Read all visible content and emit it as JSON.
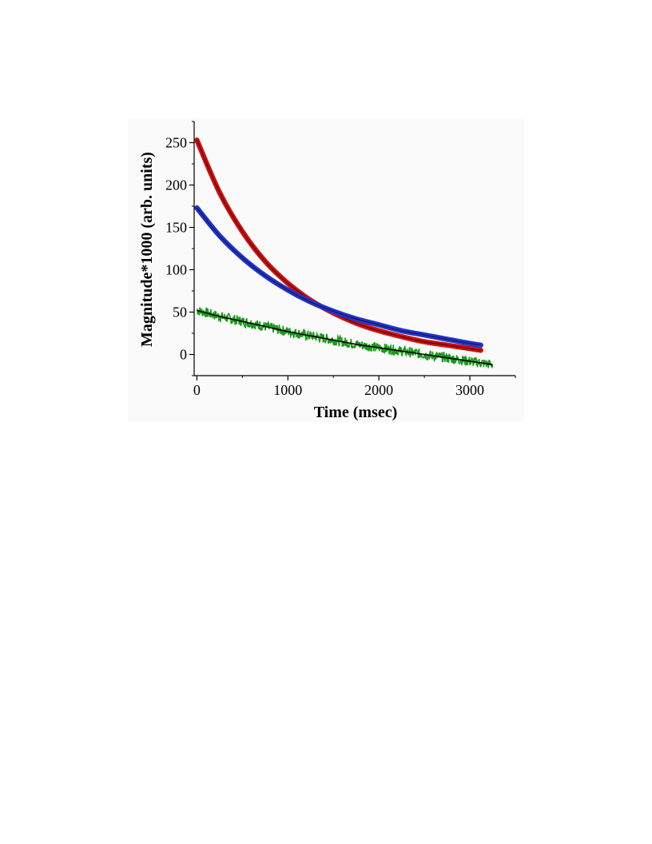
{
  "chart_data": {
    "type": "line",
    "title": "",
    "xlabel": "Time (msec)",
    "ylabel": "Magnitude*1000 (arb. units)",
    "xlim": [
      -30,
      3500
    ],
    "ylim": [
      -25,
      275
    ],
    "xticks": [
      0,
      1000,
      2000,
      3000
    ],
    "yticks": [
      0,
      50,
      100,
      150,
      200,
      250
    ],
    "grid": false,
    "legend": "none",
    "series": [
      {
        "color": "#cc1111",
        "fit_color": "#5a0000",
        "style": "thick-smooth",
        "x": [
          0,
          250,
          500,
          750,
          1000,
          1250,
          1500,
          1750,
          2000,
          2250,
          2500,
          2750,
          3000,
          3120
        ],
        "y": [
          253,
          191,
          145,
          110,
          84,
          64,
          49,
          37,
          28,
          21,
          15,
          11,
          7,
          5
        ]
      },
      {
        "color": "#2233cc",
        "fit_color": "#101a55",
        "style": "thick-smooth",
        "x": [
          0,
          250,
          500,
          750,
          1000,
          1250,
          1500,
          1750,
          2000,
          2250,
          2500,
          2750,
          3000,
          3120
        ],
        "y": [
          173,
          140,
          114,
          93,
          76,
          62,
          51,
          42,
          35,
          28,
          23,
          18,
          13,
          11
        ]
      },
      {
        "color": "#1a9a1a",
        "fit_color": "#000000",
        "style": "noisy",
        "noise_amplitude": 6,
        "x": [
          0,
          250,
          500,
          750,
          1000,
          1250,
          1500,
          1750,
          2000,
          2250,
          2500,
          2750,
          3000,
          3250
        ],
        "y": [
          52,
          45,
          39,
          33,
          27,
          22,
          17,
          12,
          8,
          4,
          0,
          -4,
          -8,
          -12
        ]
      }
    ]
  }
}
